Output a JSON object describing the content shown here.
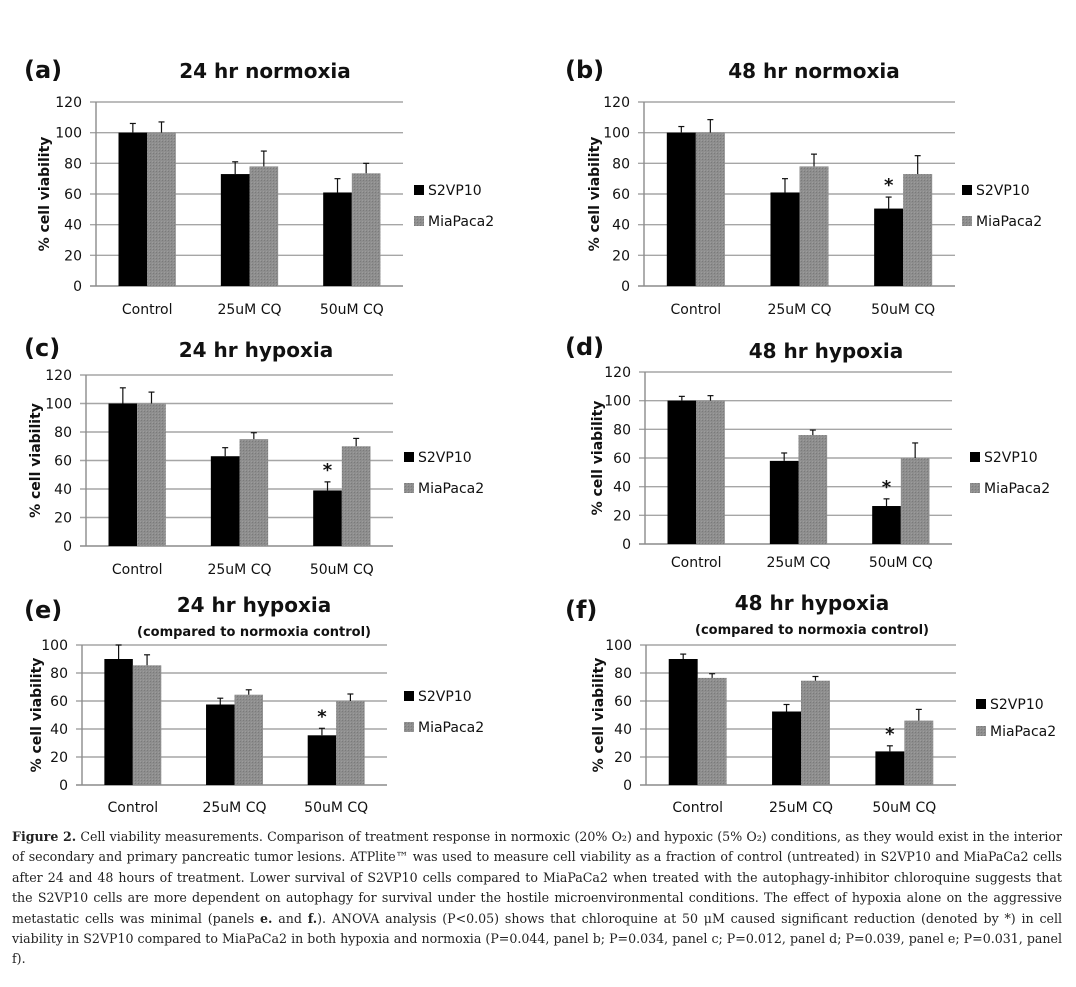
{
  "chart_data": [
    {
      "type": "bar",
      "panel_label": "(a)",
      "title": "24 hr normoxia",
      "subtitle": "",
      "ylabel": "% cell viability",
      "xlabel": "",
      "ylim": [
        0,
        120
      ],
      "yticks": [
        0,
        20,
        40,
        60,
        80,
        100,
        120
      ],
      "grid": true,
      "legend": "right",
      "categories": [
        "Control",
        "25uM CQ",
        "50uM CQ"
      ],
      "series": [
        {
          "name": "S2VP10",
          "color": "#000000",
          "values": [
            100,
            73,
            61
          ],
          "errors": [
            6,
            8,
            9
          ]
        },
        {
          "name": "MiaPaca2",
          "color": "#8a8a8a",
          "values": [
            100,
            78,
            73.5
          ],
          "errors": [
            7,
            10,
            6.5
          ]
        }
      ],
      "significance": []
    },
    {
      "type": "bar",
      "panel_label": "(b)",
      "title": "48 hr normoxia",
      "subtitle": "",
      "ylabel": "% cell viability",
      "xlabel": "",
      "ylim": [
        0,
        120
      ],
      "yticks": [
        0,
        20,
        40,
        60,
        80,
        100,
        120
      ],
      "grid": true,
      "legend": "right",
      "categories": [
        "Control",
        "25uM CQ",
        "50uM CQ"
      ],
      "series": [
        {
          "name": "S2VP10",
          "color": "#000000",
          "values": [
            100,
            61,
            50.5
          ],
          "errors": [
            4,
            9,
            7.5
          ]
        },
        {
          "name": "MiaPaca2",
          "color": "#8a8a8a",
          "values": [
            100,
            78,
            73
          ],
          "errors": [
            8.5,
            8,
            12
          ]
        }
      ],
      "significance": [
        {
          "category": "50uM CQ",
          "series": "S2VP10",
          "mark": "*"
        }
      ]
    },
    {
      "type": "bar",
      "panel_label": "(c)",
      "title": "24 hr hypoxia",
      "subtitle": "",
      "ylabel": "% cell viability",
      "xlabel": "",
      "ylim": [
        0,
        120
      ],
      "yticks": [
        0,
        20,
        40,
        60,
        80,
        100,
        120
      ],
      "grid": true,
      "legend": "right",
      "categories": [
        "Control",
        "25uM CQ",
        "50uM CQ"
      ],
      "series": [
        {
          "name": "S2VP10",
          "color": "#000000",
          "values": [
            100,
            63,
            39
          ],
          "errors": [
            11,
            6,
            6
          ]
        },
        {
          "name": "MiaPaca2",
          "color": "#8a8a8a",
          "values": [
            100,
            75,
            70
          ],
          "errors": [
            8,
            4.5,
            5.5
          ]
        }
      ],
      "significance": [
        {
          "category": "50uM CQ",
          "series": "S2VP10",
          "mark": "*"
        }
      ]
    },
    {
      "type": "bar",
      "panel_label": "(d)",
      "title": "48 hr hypoxia",
      "subtitle": "",
      "ylabel": "% cell viability",
      "xlabel": "",
      "ylim": [
        0,
        120
      ],
      "yticks": [
        0,
        20,
        40,
        60,
        80,
        100,
        120
      ],
      "grid": true,
      "legend": "right",
      "categories": [
        "Control",
        "25uM CQ",
        "50uM CQ"
      ],
      "series": [
        {
          "name": "S2VP10",
          "color": "#000000",
          "values": [
            100,
            58,
            26.5
          ],
          "errors": [
            3,
            5.5,
            5
          ]
        },
        {
          "name": "MiaPaca2",
          "color": "#8a8a8a",
          "values": [
            100,
            76,
            60
          ],
          "errors": [
            3.5,
            3.5,
            10.5
          ]
        }
      ],
      "significance": [
        {
          "category": "50uM CQ",
          "series": "S2VP10",
          "mark": "*"
        }
      ]
    },
    {
      "type": "bar",
      "panel_label": "(e)",
      "title": "24 hr hypoxia",
      "subtitle": "(compared to normoxia control)",
      "ylabel": "% cell viability",
      "xlabel": "",
      "ylim": [
        0,
        100
      ],
      "yticks": [
        0,
        20,
        40,
        60,
        80,
        100
      ],
      "grid": true,
      "legend": "right",
      "categories": [
        "Control",
        "25uM CQ",
        "50uM CQ"
      ],
      "series": [
        {
          "name": "S2VP10",
          "color": "#000000",
          "values": [
            90,
            57.5,
            35.5
          ],
          "errors": [
            10,
            4.5,
            5
          ]
        },
        {
          "name": "MiaPaca2",
          "color": "#8a8a8a",
          "values": [
            85.5,
            64.5,
            60
          ],
          "errors": [
            7.5,
            3.5,
            5
          ]
        }
      ],
      "significance": [
        {
          "category": "50uM CQ",
          "series": "S2VP10",
          "mark": "*"
        }
      ]
    },
    {
      "type": "bar",
      "panel_label": "(f)",
      "title": "48 hr hypoxia",
      "subtitle": "(compared to normoxia control)",
      "ylabel": "% cell viability",
      "xlabel": "",
      "ylim": [
        0,
        100
      ],
      "yticks": [
        0,
        20,
        40,
        60,
        80,
        100
      ],
      "grid": true,
      "legend": "right",
      "categories": [
        "Control",
        "25uM CQ",
        "50uM CQ"
      ],
      "series": [
        {
          "name": "S2VP10",
          "color": "#000000",
          "values": [
            90,
            52.5,
            24
          ],
          "errors": [
            3.5,
            5,
            4
          ]
        },
        {
          "name": "MiaPaca2",
          "color": "#8a8a8a",
          "values": [
            76.5,
            74.5,
            46
          ],
          "errors": [
            3,
            3,
            8
          ]
        }
      ],
      "significance": [
        {
          "category": "50uM CQ",
          "series": "S2VP10",
          "mark": "*"
        }
      ]
    }
  ],
  "caption": {
    "label": "Figure 2.",
    "text_1": " Cell viability measurements. Comparison of treatment response in normoxic (20% O₂) and hypoxic (5% O₂) conditions, as they would exist in the interior of secondary and primary pancreatic tumor lesions. ATPlite™ was used to measure cell viability as a fraction of control (untreated) in S2VP10 and MiaPaCa2 cells after 24 and 48 hours of treatment. Lower survival of S2VP10 cells compared to MiaPaCa2 when treated with the autophagy-inhibitor chloroquine suggests that the S2VP10 cells are more dependent on autophagy for survival under the hostile microenvironmental conditions. The effect of hypoxia alone on the aggressive metastatic cells was minimal (panels ",
    "bold_e": "e.",
    "text_2": " and ",
    "bold_f": "f.",
    "text_3": "). ANOVA analysis (P<0.05) shows that chloroquine at 50 μM caused significant reduction (denoted by *) in cell viability in S2VP10 compared to MiaPaCa2 in both hypoxia and normoxia (P=0.044, panel b; P=0.034, panel c; P=0.012, panel d; P=0.039, panel e; P=0.031, panel f)."
  }
}
